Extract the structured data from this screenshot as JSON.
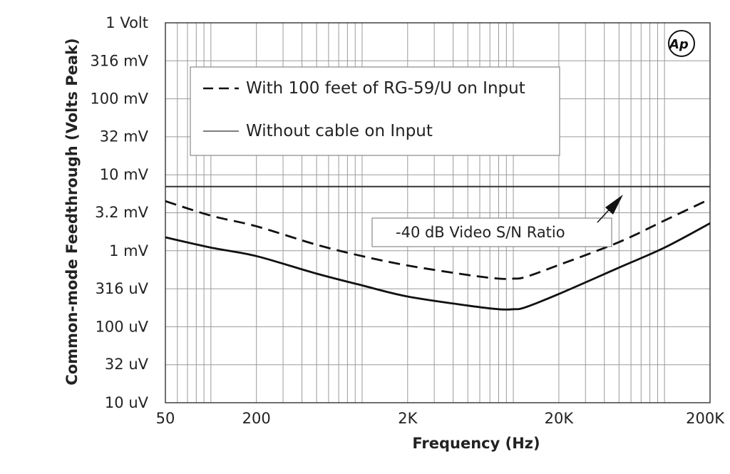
{
  "chart_data": {
    "type": "line",
    "title": "",
    "xlabel": "Frequency (Hz)",
    "ylabel": "Common-mode Feedthrough (Volts Peak)",
    "x_scale": "log",
    "y_scale": "log",
    "xlim": [
      50,
      200000
    ],
    "ylim": [
      1e-05,
      1
    ],
    "x_ticks": [
      {
        "value": 50,
        "label": "50"
      },
      {
        "value": 200,
        "label": "200"
      },
      {
        "value": 2000,
        "label": "2K"
      },
      {
        "value": 20000,
        "label": "20K"
      },
      {
        "value": 200000,
        "label": "200K"
      }
    ],
    "y_ticks": [
      {
        "value": 1,
        "label": "1 Volt"
      },
      {
        "value": 0.316,
        "label": "316 mV"
      },
      {
        "value": 0.1,
        "label": "100 mV"
      },
      {
        "value": 0.032,
        "label": "32 mV"
      },
      {
        "value": 0.01,
        "label": "10 mV"
      },
      {
        "value": 0.0032,
        "label": "3.2 mV"
      },
      {
        "value": 0.001,
        "label": "1 mV"
      },
      {
        "value": 0.000316,
        "label": "316 uV"
      },
      {
        "value": 0.0001,
        "label": "100 uV"
      },
      {
        "value": 3.2e-05,
        "label": "32 uV"
      },
      {
        "value": 1e-05,
        "label": "10 uV"
      }
    ],
    "grid": true,
    "legend_position": "top-left",
    "series": [
      {
        "name": "With 100 feet of RG-59/U on Input",
        "style": "dashed",
        "color": "#111111",
        "x": [
          50,
          100,
          200,
          500,
          1000,
          2000,
          5000,
          8000,
          10000,
          12000,
          20000,
          50000,
          100000,
          200000
        ],
        "y": [
          0.0045,
          0.0029,
          0.0021,
          0.0012,
          0.00085,
          0.00064,
          0.00048,
          0.00043,
          0.00043,
          0.00045,
          0.00065,
          0.0013,
          0.0025,
          0.0048
        ]
      },
      {
        "name": "Without cable on Input",
        "style": "solid",
        "color": "#111111",
        "x": [
          50,
          100,
          200,
          500,
          1000,
          2000,
          5000,
          8000,
          10000,
          12000,
          20000,
          50000,
          100000,
          200000
        ],
        "y": [
          0.0015,
          0.0011,
          0.00085,
          0.0005,
          0.00035,
          0.00025,
          0.00019,
          0.00017,
          0.00017,
          0.00018,
          0.00027,
          0.0006,
          0.0011,
          0.0023
        ]
      }
    ],
    "reference_lines": [
      {
        "label": "-40 dB Video S/N Ratio",
        "y": 0.007,
        "color": "#333333"
      }
    ],
    "annotation": {
      "text": "-40 dB Video S/N Ratio",
      "points_to_x": 30000
    },
    "logo": "Ap"
  },
  "colors": {
    "grid": "#9a9a9a",
    "axis": "#333333",
    "curve": "#111111",
    "legend_border": "#888888"
  }
}
